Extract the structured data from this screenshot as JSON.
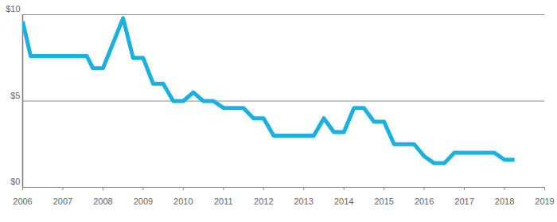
{
  "chart_data": {
    "type": "line",
    "x": [
      2006.0,
      2006.2,
      2007.6,
      2007.75,
      2008.0,
      2008.5,
      2008.75,
      2009.0,
      2009.25,
      2009.5,
      2009.75,
      2010.0,
      2010.25,
      2010.5,
      2010.75,
      2011.0,
      2011.5,
      2011.75,
      2012.0,
      2012.25,
      2013.25,
      2013.5,
      2013.75,
      2014.0,
      2014.25,
      2014.5,
      2014.75,
      2015.0,
      2015.25,
      2015.75,
      2016.0,
      2016.25,
      2016.5,
      2016.75,
      2017.75,
      2018.0,
      2018.25
    ],
    "values": [
      9.6,
      7.6,
      7.6,
      6.9,
      6.9,
      9.8,
      7.5,
      7.5,
      6.0,
      6.0,
      5.0,
      5.0,
      5.5,
      5.0,
      5.0,
      4.6,
      4.6,
      4.0,
      4.0,
      3.0,
      3.0,
      4.0,
      3.2,
      3.2,
      4.6,
      4.6,
      3.8,
      3.8,
      2.5,
      2.5,
      1.8,
      1.4,
      1.4,
      2.0,
      2.0,
      1.6,
      1.6
    ],
    "color": "#1ab0e0",
    "xlim": [
      2006,
      2019
    ],
    "xticks": [
      2006,
      2007,
      2008,
      2009,
      2010,
      2011,
      2012,
      2013,
      2014,
      2015,
      2016,
      2017,
      2018,
      2019
    ],
    "ylim": [
      0,
      10
    ],
    "yticks": [
      {
        "value": 0,
        "label": "$0"
      },
      {
        "value": 5,
        "label": "$5"
      },
      {
        "value": 10,
        "label": "$10"
      }
    ],
    "grid": true
  }
}
